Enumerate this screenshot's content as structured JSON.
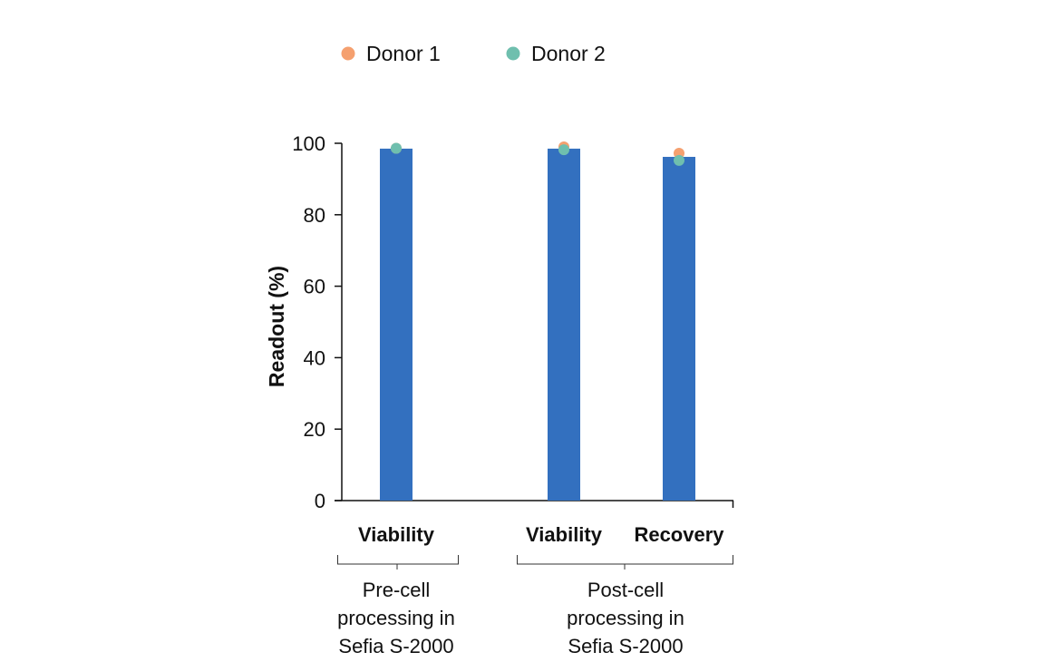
{
  "chart_data": {
    "type": "bar",
    "ylabel": "Readout (%)",
    "ylim": [
      0,
      100
    ],
    "yticks": [
      0,
      20,
      40,
      60,
      80,
      100
    ],
    "grid": false,
    "legend": {
      "placement": "top",
      "entries": [
        {
          "name": "Donor 1",
          "color": "#F5A06F"
        },
        {
          "name": "Donor 2",
          "color": "#6FBFAE"
        }
      ]
    },
    "bar_color": "#3370BF",
    "categories": [
      "Viability",
      "Viability",
      "Recovery"
    ],
    "values": [
      98.5,
      98.5,
      96.2
    ],
    "series": [
      {
        "name": "Donor 1",
        "values": [
          98.6,
          99.0,
          97.2
        ]
      },
      {
        "name": "Donor 2",
        "values": [
          98.6,
          98.2,
          95.2
        ]
      }
    ],
    "groups": [
      {
        "label_lines": [
          "Pre-cell",
          "processing in",
          "Sefia S-2000"
        ],
        "categories": [
          0
        ]
      },
      {
        "label_lines": [
          "Post-cell",
          "processing in",
          "Sefia S-2000"
        ],
        "categories": [
          1,
          2
        ]
      }
    ]
  }
}
